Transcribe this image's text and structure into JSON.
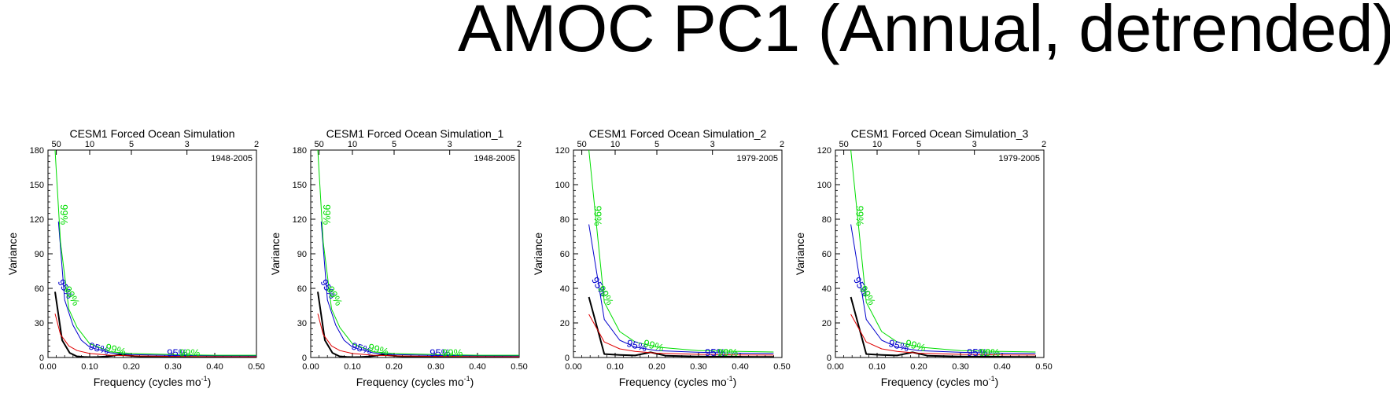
{
  "figure": {
    "title": "AMOC PC1 (Annual, detrended)"
  },
  "legend_colors": {
    "spectrum": "#000000",
    "red_noise": "#e00000",
    "sig95": "#0000cc",
    "sig99": "#00dd00"
  },
  "chart_data": [
    {
      "type": "line",
      "title": "CESM1 Forced Ocean Simulation",
      "period": "1948-2005",
      "xlabel": "Frequency (cycles mo",
      "xlabel_sup": "-1",
      "xlabel_end": ")",
      "ylabel": "Variance",
      "xlim": [
        0,
        0.5
      ],
      "ylim": [
        0,
        180
      ],
      "xticks": [
        0.0,
        0.1,
        0.2,
        0.3,
        0.4,
        0.5
      ],
      "xtick_labels": [
        "0.00",
        "0.10",
        "0.20",
        "0.30",
        "0.40",
        "0.50"
      ],
      "yticks": [
        0,
        30,
        60,
        90,
        120,
        150,
        180
      ],
      "ytick_labels": [
        "0",
        "30",
        "60",
        "90",
        "120",
        "150",
        "180"
      ],
      "top_axis_periods": [
        50,
        10,
        5,
        3,
        2
      ],
      "top_axis_labels": [
        "50",
        "10",
        "5",
        "3",
        "2"
      ],
      "series": [
        {
          "name": "spectrum",
          "x": [
            0.017,
            0.034,
            0.052,
            0.069,
            0.086,
            0.103,
            0.12,
            0.138,
            0.155,
            0.172,
            0.19,
            0.207,
            0.25,
            0.3,
            0.35,
            0.4,
            0.45,
            0.5
          ],
          "y": [
            57,
            15,
            4,
            1,
            0.5,
            0.3,
            0.4,
            0.8,
            1.5,
            2.5,
            1.8,
            1.2,
            0.7,
            0.3,
            0.2,
            0.1,
            0.1,
            0.1
          ]
        },
        {
          "name": "red_noise",
          "x": [
            0.017,
            0.03,
            0.05,
            0.07,
            0.1,
            0.15,
            0.2,
            0.3,
            0.4,
            0.5
          ],
          "y": [
            38,
            20,
            10,
            6,
            3.5,
            2,
            1.4,
            1,
            0.8,
            0.7
          ]
        },
        {
          "name": "sig95",
          "x": [
            0.025,
            0.04,
            0.06,
            0.08,
            0.1,
            0.15,
            0.2,
            0.3,
            0.4,
            0.5
          ],
          "y": [
            118,
            50,
            28,
            15,
            9,
            4,
            2.6,
            1.8,
            1.5,
            1.4
          ]
        },
        {
          "name": "sig99",
          "x": [
            0.017,
            0.03,
            0.05,
            0.07,
            0.1,
            0.15,
            0.2,
            0.3,
            0.4,
            0.5
          ],
          "y": [
            180,
            100,
            42,
            26,
            12,
            5,
            3.5,
            2.5,
            2,
            2
          ]
        }
      ],
      "annotations": [
        {
          "text": "99%",
          "x": 0.03,
          "y": 124,
          "color": "#00dd00",
          "rotate": 90
        },
        {
          "text": "95%",
          "x": 0.035,
          "y": 58,
          "color": "#0000cc",
          "rotate": 60
        },
        {
          "text": "99%",
          "x": 0.05,
          "y": 52,
          "color": "#00dd00",
          "rotate": 60
        },
        {
          "text": "95%",
          "x": 0.12,
          "y": 5,
          "color": "#0000cc",
          "rotate": 15
        },
        {
          "text": "99%",
          "x": 0.16,
          "y": 4,
          "color": "#00dd00",
          "rotate": 15
        },
        {
          "text": "95%",
          "x": 0.31,
          "y": 1,
          "color": "#0000cc",
          "rotate": 0
        },
        {
          "text": "99%",
          "x": 0.34,
          "y": 1,
          "color": "#00dd00",
          "rotate": 0
        }
      ]
    },
    {
      "type": "line",
      "title": "CESM1 Forced Ocean Simulation_1",
      "period": "1948-2005",
      "xlabel": "Frequency (cycles mo",
      "xlabel_sup": "-1",
      "xlabel_end": ")",
      "ylabel": "Variance",
      "xlim": [
        0,
        0.5
      ],
      "ylim": [
        0,
        180
      ],
      "xticks": [
        0.0,
        0.1,
        0.2,
        0.3,
        0.4,
        0.5
      ],
      "xtick_labels": [
        "0.00",
        "0.10",
        "0.20",
        "0.30",
        "0.40",
        "0.50"
      ],
      "yticks": [
        0,
        30,
        60,
        90,
        120,
        150,
        180
      ],
      "ytick_labels": [
        "0",
        "30",
        "60",
        "90",
        "120",
        "150",
        "180"
      ],
      "top_axis_periods": [
        50,
        10,
        5,
        3,
        2
      ],
      "top_axis_labels": [
        "50",
        "10",
        "5",
        "3",
        "2"
      ],
      "series": [
        {
          "name": "spectrum",
          "x": [
            0.017,
            0.034,
            0.052,
            0.069,
            0.086,
            0.103,
            0.12,
            0.138,
            0.155,
            0.172,
            0.19,
            0.207,
            0.25,
            0.3,
            0.35,
            0.4,
            0.45,
            0.5
          ],
          "y": [
            57,
            15,
            4,
            1,
            0.5,
            0.3,
            0.4,
            0.8,
            1.5,
            2.5,
            1.8,
            1.2,
            0.7,
            0.3,
            0.2,
            0.1,
            0.1,
            0.1
          ]
        },
        {
          "name": "red_noise",
          "x": [
            0.017,
            0.03,
            0.05,
            0.07,
            0.1,
            0.15,
            0.2,
            0.3,
            0.4,
            0.5
          ],
          "y": [
            38,
            20,
            10,
            6,
            3.5,
            2,
            1.4,
            1,
            0.8,
            0.7
          ]
        },
        {
          "name": "sig95",
          "x": [
            0.025,
            0.04,
            0.06,
            0.08,
            0.1,
            0.15,
            0.2,
            0.3,
            0.4,
            0.5
          ],
          "y": [
            118,
            50,
            28,
            15,
            9,
            4,
            2.6,
            1.8,
            1.5,
            1.4
          ]
        },
        {
          "name": "sig99",
          "x": [
            0.017,
            0.03,
            0.05,
            0.07,
            0.1,
            0.15,
            0.2,
            0.3,
            0.4,
            0.5
          ],
          "y": [
            180,
            100,
            42,
            26,
            12,
            5,
            3.5,
            2.5,
            2,
            2
          ]
        }
      ],
      "annotations": [
        {
          "text": "99%",
          "x": 0.03,
          "y": 124,
          "color": "#00dd00",
          "rotate": 90
        },
        {
          "text": "95%",
          "x": 0.035,
          "y": 58,
          "color": "#0000cc",
          "rotate": 60
        },
        {
          "text": "99%",
          "x": 0.05,
          "y": 52,
          "color": "#00dd00",
          "rotate": 60
        },
        {
          "text": "95%",
          "x": 0.12,
          "y": 5,
          "color": "#0000cc",
          "rotate": 15
        },
        {
          "text": "99%",
          "x": 0.16,
          "y": 4,
          "color": "#00dd00",
          "rotate": 15
        },
        {
          "text": "95%",
          "x": 0.31,
          "y": 1,
          "color": "#0000cc",
          "rotate": 0
        },
        {
          "text": "99%",
          "x": 0.34,
          "y": 1,
          "color": "#00dd00",
          "rotate": 0
        }
      ]
    },
    {
      "type": "line",
      "title": "CESM1 Forced Ocean Simulation_2",
      "period": "1979-2005",
      "xlabel": "Frequency (cycles mo",
      "xlabel_sup": "-1",
      "xlabel_end": ")",
      "ylabel": "Variance",
      "xlim": [
        0,
        0.5
      ],
      "ylim": [
        0,
        120
      ],
      "xticks": [
        0.0,
        0.1,
        0.2,
        0.3,
        0.4,
        0.5
      ],
      "xtick_labels": [
        "0.00",
        "0.10",
        "0.20",
        "0.30",
        "0.40",
        "0.50"
      ],
      "yticks": [
        0,
        20,
        40,
        60,
        80,
        100,
        120
      ],
      "ytick_labels": [
        "0",
        "20",
        "40",
        "60",
        "80",
        "100",
        "120"
      ],
      "top_axis_periods": [
        50,
        10,
        5,
        3,
        2
      ],
      "top_axis_labels": [
        "50",
        "10",
        "5",
        "3",
        "2"
      ],
      "series": [
        {
          "name": "spectrum",
          "x": [
            0.037,
            0.074,
            0.111,
            0.148,
            0.185,
            0.222,
            0.259,
            0.296,
            0.333,
            0.37,
            0.407,
            0.444,
            0.481
          ],
          "y": [
            35,
            2,
            1.5,
            1.2,
            3,
            1,
            0.8,
            0.6,
            0.5,
            0.6,
            0.4,
            0.3,
            0.3
          ]
        },
        {
          "name": "red_noise",
          "x": [
            0.037,
            0.074,
            0.111,
            0.148,
            0.2,
            0.3,
            0.4,
            0.48
          ],
          "y": [
            25,
            9,
            5,
            3.5,
            2.5,
            1.8,
            1.5,
            1.4
          ]
        },
        {
          "name": "sig95",
          "x": [
            0.037,
            0.074,
            0.111,
            0.148,
            0.2,
            0.3,
            0.4,
            0.48
          ],
          "y": [
            77,
            22,
            10,
            6,
            4,
            3,
            2.5,
            2.3
          ]
        },
        {
          "name": "sig99",
          "x": [
            0.037,
            0.074,
            0.111,
            0.148,
            0.2,
            0.3,
            0.4,
            0.48
          ],
          "y": [
            120,
            32,
            15,
            9,
            6,
            4,
            3.5,
            3.2
          ]
        }
      ],
      "annotations": [
        {
          "text": "99%",
          "x": 0.05,
          "y": 82,
          "color": "#00dd00",
          "rotate": 90
        },
        {
          "text": "95%",
          "x": 0.055,
          "y": 40,
          "color": "#0000cc",
          "rotate": 60
        },
        {
          "text": "99%",
          "x": 0.07,
          "y": 35,
          "color": "#00dd00",
          "rotate": 60
        },
        {
          "text": "95%",
          "x": 0.15,
          "y": 5,
          "color": "#0000cc",
          "rotate": 15
        },
        {
          "text": "99%",
          "x": 0.19,
          "y": 5,
          "color": "#00dd00",
          "rotate": 15
        },
        {
          "text": "95%",
          "x": 0.34,
          "y": 1,
          "color": "#0000cc",
          "rotate": 0
        },
        {
          "text": "99%",
          "x": 0.37,
          "y": 1,
          "color": "#00dd00",
          "rotate": 0
        }
      ]
    },
    {
      "type": "line",
      "title": "CESM1 Forced Ocean Simulation_3",
      "period": "1979-2005",
      "xlabel": "Frequency (cycles mo",
      "xlabel_sup": "-1",
      "xlabel_end": ")",
      "ylabel": "Variance",
      "xlim": [
        0,
        0.5
      ],
      "ylim": [
        0,
        120
      ],
      "xticks": [
        0.0,
        0.1,
        0.2,
        0.3,
        0.4,
        0.5
      ],
      "xtick_labels": [
        "0.00",
        "0.10",
        "0.20",
        "0.30",
        "0.40",
        "0.50"
      ],
      "yticks": [
        0,
        20,
        40,
        60,
        80,
        100,
        120
      ],
      "ytick_labels": [
        "0",
        "20",
        "40",
        "60",
        "80",
        "100",
        "120"
      ],
      "top_axis_periods": [
        50,
        10,
        5,
        3,
        2
      ],
      "top_axis_labels": [
        "50",
        "10",
        "5",
        "3",
        "2"
      ],
      "series": [
        {
          "name": "spectrum",
          "x": [
            0.037,
            0.074,
            0.111,
            0.148,
            0.185,
            0.222,
            0.259,
            0.296,
            0.333,
            0.37,
            0.407,
            0.444,
            0.481
          ],
          "y": [
            35,
            2,
            1.5,
            1.2,
            3,
            1,
            0.8,
            0.6,
            0.5,
            0.6,
            0.4,
            0.3,
            0.3
          ]
        },
        {
          "name": "red_noise",
          "x": [
            0.037,
            0.074,
            0.111,
            0.148,
            0.2,
            0.3,
            0.4,
            0.48
          ],
          "y": [
            25,
            9,
            5,
            3.5,
            2.5,
            1.8,
            1.5,
            1.4
          ]
        },
        {
          "name": "sig95",
          "x": [
            0.037,
            0.074,
            0.111,
            0.148,
            0.2,
            0.3,
            0.4,
            0.48
          ],
          "y": [
            77,
            22,
            10,
            6,
            4,
            3,
            2.5,
            2.3
          ]
        },
        {
          "name": "sig99",
          "x": [
            0.037,
            0.074,
            0.111,
            0.148,
            0.2,
            0.3,
            0.4,
            0.48
          ],
          "y": [
            120,
            32,
            15,
            9,
            6,
            4,
            3.5,
            3.2
          ]
        }
      ],
      "annotations": [
        {
          "text": "99%",
          "x": 0.05,
          "y": 82,
          "color": "#00dd00",
          "rotate": 90
        },
        {
          "text": "95%",
          "x": 0.055,
          "y": 40,
          "color": "#0000cc",
          "rotate": 60
        },
        {
          "text": "99%",
          "x": 0.07,
          "y": 35,
          "color": "#00dd00",
          "rotate": 60
        },
        {
          "text": "95%",
          "x": 0.15,
          "y": 5,
          "color": "#0000cc",
          "rotate": 15
        },
        {
          "text": "99%",
          "x": 0.19,
          "y": 5,
          "color": "#00dd00",
          "rotate": 15
        },
        {
          "text": "95%",
          "x": 0.34,
          "y": 1,
          "color": "#0000cc",
          "rotate": 0
        },
        {
          "text": "99%",
          "x": 0.37,
          "y": 1,
          "color": "#00dd00",
          "rotate": 0
        }
      ]
    }
  ]
}
